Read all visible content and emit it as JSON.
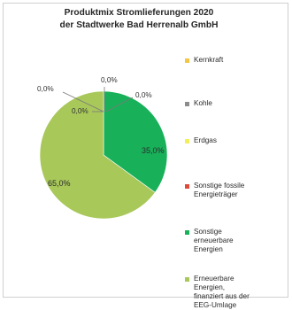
{
  "chart_data": {
    "type": "pie",
    "title_lines": [
      "Produktmix Stromlieferungen 2020",
      "der Stadtwerke Bad Herrenalb GmbH"
    ],
    "slices": [
      {
        "label": "Kernkraft",
        "value": 0.0,
        "display": "0,0%",
        "color": "#f2c744"
      },
      {
        "label": "Kohle",
        "value": 0.0,
        "display": "0,0%",
        "color": "#8c8c8c"
      },
      {
        "label": "Erdgas",
        "value": 0.0,
        "display": "0,0%",
        "color": "#f3ef5a"
      },
      {
        "label": "Sonstige fossile Energieträger",
        "value": 0.0,
        "display": "0,0%",
        "color": "#e04a3a"
      },
      {
        "label": "Sonstige erneuerbare Energien",
        "value": 35.0,
        "display": "35,0%",
        "color": "#18b15a"
      },
      {
        "label": "Erneuerbare Energien, finanziert aus der EEG-Umlage",
        "value": 65.0,
        "display": "65,0%",
        "color": "#a8c85a"
      }
    ],
    "legend_lines": [
      [
        "Kernkraft"
      ],
      [
        "Kohle"
      ],
      [
        "Erdgas"
      ],
      [
        "Sonstige fossile",
        "Energieträger"
      ],
      [
        "Sonstige",
        "erneuerbare",
        "Energien"
      ],
      [
        "Erneuerbare",
        "Energien,",
        "finanziert aus der",
        "EEG-Umlage"
      ]
    ],
    "legend_position": "right",
    "start_angle": "top",
    "direction": "clockwise"
  }
}
